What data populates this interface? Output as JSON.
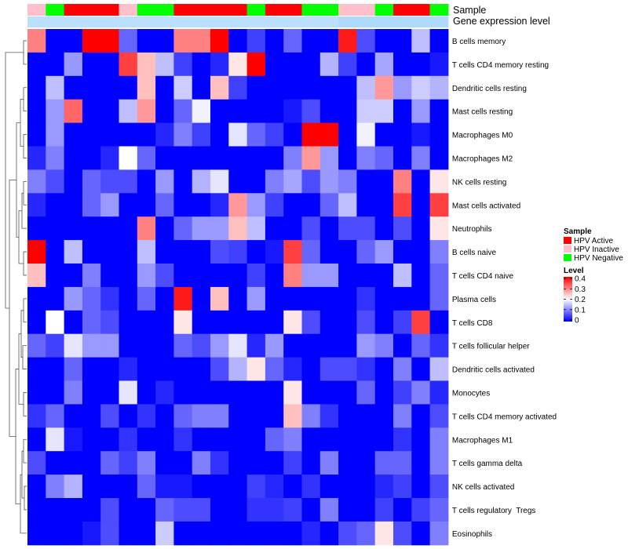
{
  "chart_data": {
    "type": "heatmap",
    "annotation_tracks": [
      "Sample",
      "Gene expression level"
    ],
    "legend_sample": {
      "title": "Sample",
      "entries": [
        {
          "label": "HPV Active",
          "color": "#ff0000"
        },
        {
          "label": "HPV Inactive",
          "color": "#ffc0cb"
        },
        {
          "label": "HPV Negative",
          "color": "#00ff00"
        }
      ]
    },
    "legend_level": {
      "title": "Level",
      "min": 0,
      "max": 0.4,
      "ticks": [
        "0.4",
        "0.3",
        "0.2",
        "0.1",
        "0"
      ],
      "colors": [
        "#0000ff",
        "#ffffff",
        "#ff0000"
      ]
    },
    "sample_groups": [
      "inactive",
      "negative",
      "active",
      "active",
      "active",
      "inactive",
      "negative",
      "negative",
      "active",
      "active",
      "active",
      "active",
      "negative",
      "active",
      "active",
      "negative",
      "negative",
      "inactive",
      "inactive",
      "negative",
      "active",
      "active",
      "negative"
    ],
    "expression_levels": [
      0.2,
      0.2,
      0.2,
      0.2,
      0.2,
      0.2,
      0.2,
      0.2,
      0.2,
      0.2,
      0.2,
      0.2,
      0.2,
      0.2,
      0.2,
      0.2,
      0.2,
      0.3,
      0.3,
      0.3,
      0.3,
      0.3,
      0.3
    ],
    "rows": [
      "B cells memory",
      "T cells CD4 memory resting",
      "Dendritic cells resting",
      "Mast cells resting",
      "Macrophages M0",
      "Macrophages M2",
      "NK cells resting",
      "Mast cells activated",
      "Neutrophils",
      "B cells naive",
      "T cells CD4 naive",
      "Plasma cells",
      "T cells CD8",
      "T cells follicular helper",
      "Dendritic cells activated",
      "Monocytes",
      "T cells CD4 memory activated",
      "Macrophages M1",
      "T cells gamma delta",
      "NK cells activated",
      "T cells regulatory  Tregs",
      "Eosinophils"
    ],
    "values": [
      [
        0.3,
        0,
        0,
        0.4,
        0.4,
        0.08,
        0,
        0,
        0.3,
        0.3,
        0.4,
        0,
        0.05,
        0,
        0.08,
        0,
        0,
        0.38,
        0.06,
        0,
        0,
        0.15,
        0
      ],
      [
        0,
        0,
        0.12,
        0,
        0,
        0.35,
        0.25,
        0.15,
        0.05,
        0,
        0.03,
        0.22,
        0.42,
        0,
        0,
        0,
        0.14,
        0.05,
        0,
        0.13,
        0,
        0,
        0.02
      ],
      [
        0,
        0.15,
        0,
        0,
        0,
        0,
        0.25,
        0,
        0.16,
        0,
        0.25,
        0.05,
        0,
        0,
        0,
        0,
        0,
        0,
        0.15,
        0.28,
        0.12,
        0.16,
        0.14
      ],
      [
        0,
        0.12,
        0.32,
        0,
        0,
        0.15,
        0.28,
        0,
        0.08,
        0.19,
        0,
        0,
        0,
        0,
        0.02,
        0.06,
        0,
        0,
        0.16,
        0.16,
        0,
        0.12,
        0
      ],
      [
        0,
        0.12,
        0,
        0,
        0,
        0,
        0,
        0.03,
        0.1,
        0.05,
        0,
        0.18,
        0.08,
        0.05,
        0,
        0.4,
        0.4,
        0,
        0.19,
        0,
        0,
        0.02,
        0
      ],
      [
        0.03,
        0.1,
        0,
        0,
        0.03,
        0.2,
        0.08,
        0,
        0,
        0,
        0,
        0,
        0,
        0,
        0.1,
        0.28,
        0.12,
        0,
        0.1,
        0.08,
        0,
        0.1,
        0
      ],
      [
        0.1,
        0.06,
        0,
        0.08,
        0.06,
        0.06,
        0,
        0.12,
        0,
        0.14,
        0.18,
        0,
        0,
        0.1,
        0.13,
        0.06,
        0.12,
        0.1,
        0,
        0,
        0.3,
        0,
        0.22
      ],
      [
        0.03,
        0,
        0,
        0.08,
        0.12,
        0,
        0,
        0.08,
        0,
        0,
        0.03,
        0.28,
        0.12,
        0.05,
        0,
        0,
        0.08,
        0.15,
        0,
        0,
        0.35,
        0,
        0.35
      ],
      [
        0,
        0,
        0,
        0,
        0,
        0,
        0.3,
        0,
        0.08,
        0.12,
        0.12,
        0.25,
        0.15,
        0,
        0,
        0.06,
        0,
        0.06,
        0.06,
        0,
        0.06,
        0,
        0.22
      ],
      [
        0.4,
        0,
        0.15,
        0,
        0,
        0,
        0.15,
        0,
        0,
        0,
        0.06,
        0.05,
        0,
        0.02,
        0.35,
        0.08,
        0,
        0,
        0.08,
        0.12,
        0,
        0,
        0.1
      ],
      [
        0.25,
        0,
        0,
        0.1,
        0,
        0,
        0.12,
        0.06,
        0,
        0,
        0,
        0,
        0.05,
        0,
        0.3,
        0.12,
        0.12,
        0,
        0,
        0,
        0.15,
        0,
        0.08
      ],
      [
        0,
        0,
        0.12,
        0.08,
        0.04,
        0,
        0.08,
        0,
        0.38,
        0,
        0.25,
        0,
        0.12,
        0,
        0,
        0,
        0,
        0,
        0.04,
        0,
        0,
        0,
        0.08
      ],
      [
        0,
        0.2,
        0,
        0.08,
        0.06,
        0,
        0,
        0,
        0.22,
        0,
        0,
        0,
        0,
        0,
        0.22,
        0.06,
        0,
        0,
        0.06,
        0,
        0.05,
        0.35,
        0
      ],
      [
        0.08,
        0.05,
        0.18,
        0.12,
        0.12,
        0,
        0,
        0,
        0.08,
        0.06,
        0.12,
        0.18,
        0.03,
        0.12,
        0,
        0,
        0,
        0,
        0.12,
        0.1,
        0,
        0.08,
        0.04
      ],
      [
        0,
        0,
        0.08,
        0,
        0,
        0.03,
        0,
        0,
        0,
        0,
        0.06,
        0.14,
        0.22,
        0.08,
        0.03,
        0,
        0.06,
        0.06,
        0.04,
        0,
        0.1,
        0,
        0.15
      ],
      [
        0,
        0,
        0.1,
        0,
        0,
        0.18,
        0,
        0.03,
        0,
        0,
        0,
        0,
        0,
        0,
        0.22,
        0,
        0,
        0,
        0.08,
        0,
        0.05,
        0.1,
        0.03
      ],
      [
        0.04,
        0.08,
        0,
        0,
        0.06,
        0,
        0.04,
        0,
        0.08,
        0.1,
        0.1,
        0,
        0,
        0,
        0.25,
        0.1,
        0.04,
        0,
        0,
        0,
        0.1,
        0,
        0.06
      ],
      [
        0,
        0.18,
        0.02,
        0,
        0,
        0.04,
        0,
        0,
        0.04,
        0,
        0,
        0,
        0,
        0.08,
        0.1,
        0,
        0,
        0,
        0,
        0,
        0.04,
        0,
        0.1
      ],
      [
        0.06,
        0,
        0,
        0,
        0.08,
        0.05,
        0.1,
        0,
        0,
        0.1,
        0.04,
        0,
        0,
        0,
        0.05,
        0,
        0.1,
        0,
        0,
        0.08,
        0.08,
        0,
        0.1
      ],
      [
        0,
        0.1,
        0.14,
        0,
        0,
        0,
        0.08,
        0.02,
        0.02,
        0,
        0,
        0,
        0.05,
        0.03,
        0,
        0.04,
        0,
        0,
        0,
        0.03,
        0.05,
        0,
        0.06
      ],
      [
        0,
        0,
        0,
        0,
        0.06,
        0,
        0,
        0.08,
        0.06,
        0.06,
        0,
        0,
        0.04,
        0.04,
        0.05,
        0,
        0.1,
        0,
        0,
        0.05,
        0,
        0.05,
        0.08
      ],
      [
        0,
        0,
        0,
        0.02,
        0.06,
        0,
        0,
        0.16,
        0,
        0,
        0,
        0,
        0,
        0,
        0,
        0.03,
        0,
        0.06,
        0.08,
        0.22,
        0.06,
        0,
        0.1
      ]
    ]
  }
}
